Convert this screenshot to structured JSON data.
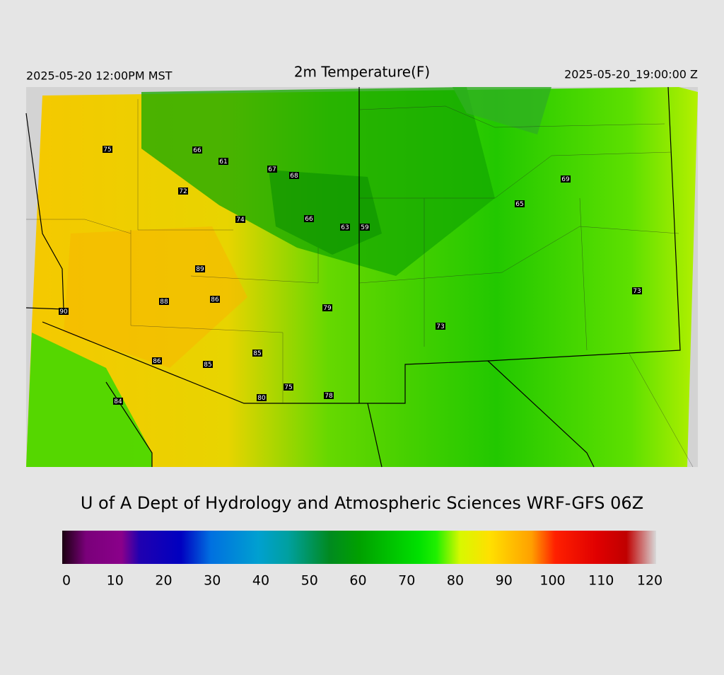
{
  "header": {
    "left": "2025-05-20 12:00PM MST",
    "title": "2m Temperature(F)",
    "right": "2025-05-20_19:00:00 Z"
  },
  "stations": [
    75,
    66,
    61,
    67,
    68,
    72,
    74,
    66,
    63,
    59,
    69,
    65,
    89,
    88,
    86,
    90,
    79,
    73,
    73,
    85,
    86,
    85,
    75,
    80,
    78,
    84
  ],
  "footer": "U of A Dept of Hydrology and Atmospheric Sciences WRF-GFS 06Z",
  "colorbar": {
    "lim": [
      0,
      120
    ],
    "ticks": [
      0,
      10,
      20,
      30,
      40,
      50,
      60,
      70,
      80,
      90,
      100,
      110,
      120
    ]
  }
}
